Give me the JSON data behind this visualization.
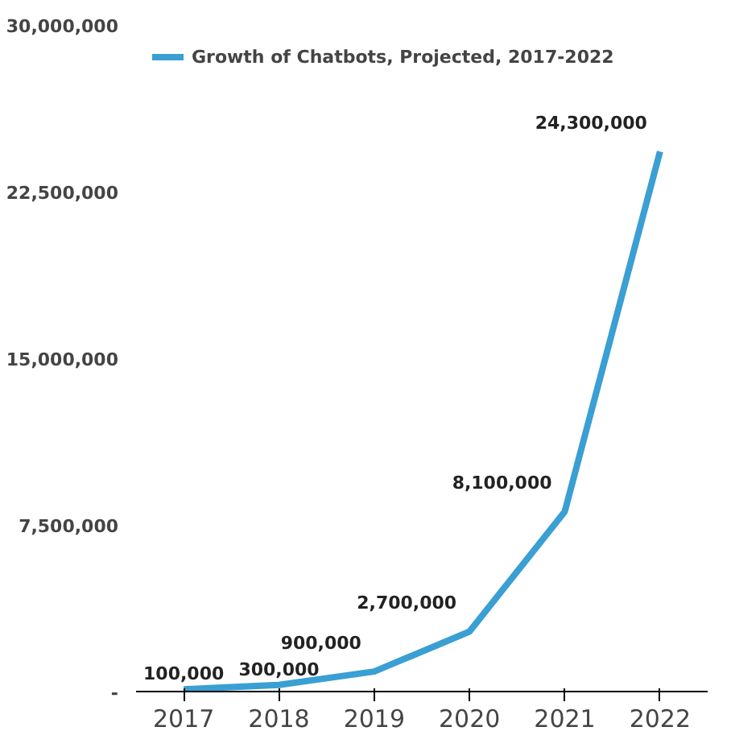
{
  "chart_data": {
    "type": "line",
    "categories": [
      "2017",
      "2018",
      "2019",
      "2020",
      "2021",
      "2022"
    ],
    "series": [
      {
        "name": "Growth of Chatbots, Projected, 2017-2022",
        "color": "#3a9fd3",
        "values": [
          100000,
          300000,
          900000,
          2700000,
          8100000,
          24300000
        ],
        "value_labels": [
          "100,000",
          "300,000",
          "900,000",
          "2,700,000",
          "8,100,000",
          "24,300,000"
        ]
      }
    ],
    "ylim": [
      0,
      30000000
    ],
    "yticks": [
      {
        "value": 0,
        "label": "-"
      },
      {
        "value": 7500000,
        "label": "7,500,000"
      },
      {
        "value": 15000000,
        "label": "15,000,000"
      },
      {
        "value": 22500000,
        "label": "22,500,000"
      },
      {
        "value": 30000000,
        "label": "30,000,000"
      }
    ],
    "legend": "top left",
    "grid": false,
    "marker": "none",
    "line_style": "solid"
  }
}
